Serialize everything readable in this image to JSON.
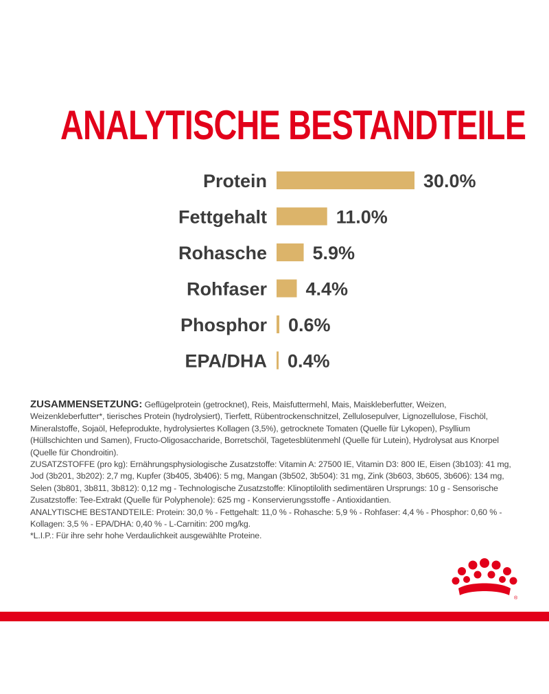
{
  "chart_data": {
    "type": "bar",
    "orientation": "horizontal",
    "title": "ANALYTISCHE BESTANDTEILE",
    "categories": [
      "Protein",
      "Fettgehalt",
      "Rohasche",
      "Rohfaser",
      "Phosphor",
      "EPA/DHA"
    ],
    "values": [
      30.0,
      11.0,
      5.9,
      4.4,
      0.6,
      0.4
    ],
    "value_labels": [
      "30.0%",
      "11.0%",
      "5.9%",
      "4.4%",
      "0.6%",
      "0.4%"
    ],
    "unit": "%",
    "bar_color": "#dcb46a",
    "grid": false,
    "legend": "none"
  },
  "composition": {
    "heading": "ZUSAMMENSETZUNG:",
    "ingredients": " Geflügelprotein (getrocknet), Reis, Maisfuttermehl, Mais, Maiskleberfutter, Weizen, Weizenkleberfutter*, tierisches Protein (hydrolysiert), Tierfett, Rübentrockenschnitzel, Zellulosepulver, Lignozellulose, Fischöl, Mineralstoffe, Sojaöl, Hefeprodukte, hydrolysiertes Kollagen (3,5%), getrocknete Tomaten (Quelle für Lykopen), Psyllium (Hüllschichten und Samen), Fructo-Oligosaccharide, Borretschöl, Tagetesblütenmehl (Quelle für Lutein), Hydrolysat aus Knorpel (Quelle für Chondroitin).",
    "additives": "ZUSATZSTOFFE (pro kg): Ernährungsphysiologische Zusatzstoffe: Vitamin A: 27500 IE, Vitamin D3: 800 IE, Eisen (3b103): 41 mg, Jod (3b201, 3b202): 2,7 mg, Kupfer (3b405, 3b406): 5 mg, Mangan (3b502, 3b504): 31 mg, Zink (3b603, 3b605, 3b606): 134 mg, Selen (3b801, 3b811, 3b812): 0,12 mg - Technologische Zusatzstoffe: Klinoptilolith sedimentären Ursprungs: 10 g - Sensorische Zusatzstoffe: Tee-Extrakt (Quelle für Polyphenole): 625 mg - Konservierungsstoffe - Antioxidantien.",
    "analytical": "ANALYTISCHE BESTANDTEILE: Protein: 30,0 % - Fettgehalt: 11,0 % - Rohasche: 5,9 % - Rohfaser: 4,4 % - Phosphor: 0,60 % - Kollagen: 3,5 % - EPA/DHA: 0,40 % - L-Carnitin: 200 mg/kg.",
    "footnote": "*L.I.P.: Für ihre sehr hohe Verdaulichkeit ausgewählte Proteine."
  },
  "brand": {
    "logo_icon": "crown-icon",
    "accent_color": "#e2001a"
  }
}
